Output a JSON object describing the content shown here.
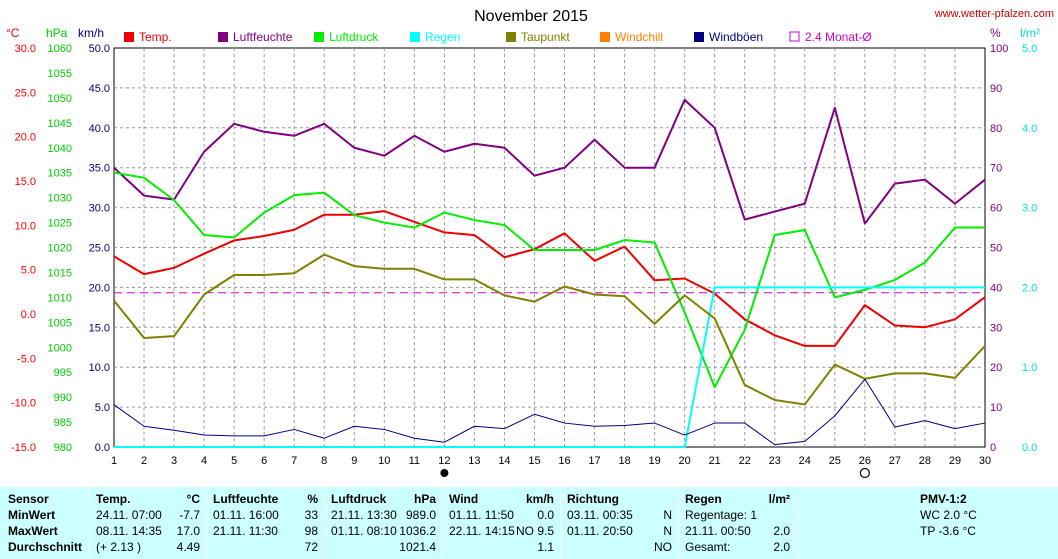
{
  "header": {
    "title": "November 2015",
    "site": "www.wetter-pfalzen.com",
    "unit_temp": "°C",
    "unit_hpa": "hPa",
    "unit_kmh": "km/h",
    "unit_pct": "%",
    "unit_lm2": "l/m²"
  },
  "legend": [
    {
      "label": "Temp.",
      "color": "#ee0000",
      "type": "box"
    },
    {
      "label": "Luftfeuchte",
      "color": "#800080",
      "type": "box"
    },
    {
      "label": "Luftdruck",
      "color": "#00ee00",
      "type": "box"
    },
    {
      "label": "Regen",
      "color": "#00ffff",
      "type": "box"
    },
    {
      "label": "Taupunkt",
      "color": "#808000",
      "type": "box"
    },
    {
      "label": "Windchill",
      "color": "#ff8000",
      "type": "box"
    },
    {
      "label": "Windböen",
      "color": "#000080",
      "type": "box"
    },
    {
      "label": "2.4 Monat-Ø",
      "color": "#cc00cc",
      "type": "outline"
    }
  ],
  "colors": {
    "temp": "#ee0000",
    "humidity": "#800080",
    "pressure": "#00ee00",
    "rain": "#00ffff",
    "dew": "#808000",
    "gust": "#000080",
    "avg": "#cc00cc",
    "grid": "#999999",
    "temp_axis": "#ff0000",
    "pressure_axis": "#00cc00",
    "wind_axis": "#000080",
    "pct_axis": "#800080",
    "rain_axis": "#00dddd",
    "stats_bg": "#ccffff"
  },
  "chart_data": {
    "type": "line",
    "title": "November 2015",
    "x": [
      1,
      2,
      3,
      4,
      5,
      6,
      7,
      8,
      9,
      10,
      11,
      12,
      13,
      14,
      15,
      16,
      17,
      18,
      19,
      20,
      21,
      22,
      23,
      24,
      25,
      26,
      27,
      28,
      29,
      30
    ],
    "xlim": [
      1,
      30
    ],
    "axes": {
      "temp": {
        "label": "°C",
        "range": [
          -15,
          30
        ],
        "ticks": [
          "30.0",
          "25.0",
          "20.0",
          "15.0",
          "10.0",
          "5.0",
          "0.0",
          "-5.0",
          "-10.0",
          "-15.0"
        ]
      },
      "pressure": {
        "label": "hPa",
        "range": [
          980,
          1060
        ],
        "ticks": [
          "1060",
          "1055",
          "1050",
          "1045",
          "1040",
          "1035",
          "1030",
          "1025",
          "1020",
          "1015",
          "1010",
          "1005",
          "1000",
          "995",
          "990",
          "985",
          "980"
        ]
      },
      "wind": {
        "label": "km/h",
        "range": [
          0,
          50
        ],
        "ticks": [
          "50.0",
          "45.0",
          "40.0",
          "35.0",
          "30.0",
          "25.0",
          "20.0",
          "15.0",
          "10.0",
          "5.0",
          "0.0"
        ]
      },
      "humidity": {
        "label": "%",
        "range": [
          0,
          100
        ],
        "ticks": [
          "100",
          "90",
          "80",
          "70",
          "60",
          "50",
          "40",
          "30",
          "20",
          "10",
          "0"
        ]
      },
      "rain": {
        "label": "l/m²",
        "range": [
          0,
          5
        ],
        "ticks": [
          "5.0",
          "4.0",
          "3.0",
          "2.0",
          "1.0",
          "0.0"
        ]
      }
    },
    "x_ticks": [
      "1",
      "2",
      "3",
      "4",
      "5",
      "6",
      "7",
      "8",
      "9",
      "10",
      "11",
      "12",
      "13",
      "14",
      "15",
      "16",
      "17",
      "18",
      "19",
      "20",
      "21",
      "22",
      "23",
      "24",
      "25",
      "26",
      "27",
      "28",
      "29",
      "30"
    ],
    "moon_phases": {
      "new_moon": 12,
      "full_moon": 26
    },
    "reference_line": {
      "name": "2.4 Monat-Ø",
      "value": 2.4
    },
    "series": [
      {
        "name": "Temp.",
        "axis": "temp",
        "values": [
          6.5,
          4.5,
          5.2,
          6.8,
          8.3,
          8.8,
          9.5,
          11.2,
          11.2,
          11.6,
          10.4,
          9.2,
          8.9,
          6.4,
          7.3,
          9.1,
          6.0,
          7.6,
          3.8,
          4.0,
          2.3,
          -0.6,
          -2.4,
          -3.6,
          -3.6,
          1.0,
          -1.3,
          -1.5,
          -0.6,
          1.9
        ]
      },
      {
        "name": "Luftfeuchte",
        "axis": "humidity",
        "values": [
          70,
          63,
          62,
          74,
          81,
          79,
          78,
          81,
          75,
          73,
          78,
          74,
          76,
          75,
          68,
          70,
          77,
          70,
          70,
          87,
          80,
          57,
          59,
          61,
          85,
          56,
          66,
          67,
          61,
          67
        ]
      },
      {
        "name": "Luftdruck",
        "axis": "pressure",
        "values": [
          1035.0,
          1034.0,
          1029.5,
          1022.5,
          1022.0,
          1027.0,
          1030.5,
          1031.0,
          1026.5,
          1025.0,
          1024.0,
          1027.0,
          1025.5,
          1024.5,
          1019.5,
          1019.5,
          1019.5,
          1021.5,
          1021.0,
          1007.0,
          992.0,
          1003.5,
          1022.5,
          1023.5,
          1010.0,
          1011.5,
          1013.5,
          1017.0,
          1024.0,
          1024.0
        ]
      },
      {
        "name": "Regen",
        "axis": "rain",
        "values": [
          0,
          0,
          0,
          0,
          0,
          0,
          0,
          0,
          0,
          0,
          0,
          0,
          0,
          0,
          0,
          0,
          0,
          0,
          0,
          0,
          2.0,
          2.0,
          2.0,
          2.0,
          2.0,
          2.0,
          2.0,
          2.0,
          2.0,
          2.0
        ]
      },
      {
        "name": "Taupunkt",
        "axis": "temp",
        "values": [
          1.5,
          -2.7,
          -2.5,
          2.2,
          4.4,
          4.4,
          4.6,
          6.7,
          5.4,
          5.1,
          5.1,
          3.9,
          3.9,
          2.1,
          1.4,
          3.1,
          2.2,
          2.0,
          -1.1,
          2.1,
          -0.5,
          -8.0,
          -9.7,
          -10.2,
          -5.7,
          -7.3,
          -6.7,
          -6.7,
          -7.2,
          -3.6
        ]
      },
      {
        "name": "Windböen",
        "axis": "wind",
        "values": [
          5.3,
          2.6,
          2.1,
          1.5,
          1.4,
          1.4,
          2.2,
          1.1,
          2.6,
          2.2,
          1.1,
          0.6,
          2.6,
          2.3,
          4.1,
          3.0,
          2.6,
          2.7,
          3.0,
          1.5,
          3.0,
          3.0,
          0.3,
          0.7,
          3.9,
          8.5,
          2.5,
          3.3,
          2.3,
          3.0
        ]
      }
    ]
  },
  "stats": {
    "rows": [
      "Sensor",
      "MinWert",
      "MaxWert",
      "Durchschnitt"
    ],
    "temp": {
      "title": "Temp.",
      "unit": "°C",
      "min_time": "24.11. 07:00",
      "min_value": "-7.7",
      "max_time": "08.11. 14:35",
      "max_value": "17.0",
      "avg_note": "(+ 2.13 )",
      "avg_value": "4.49"
    },
    "humidity": {
      "title": "Luftfeuchte",
      "unit": "%",
      "min_time": "01.11. 16:00",
      "min_value": "33",
      "max_time": "21.11. 11:30",
      "max_value": "98",
      "avg_value": "72"
    },
    "pressure": {
      "title": "Luftdruck",
      "unit": "hPa",
      "min_time": "21.11. 13:30",
      "min_value": "989.0",
      "max_time": "01.11. 08:10",
      "max_value": "1036.2",
      "avg_value": "1021.4"
    },
    "wind": {
      "title": "Wind",
      "unit": "km/h",
      "min_time": "01.11. 11:50",
      "min_value": "0.0",
      "max_time": "22.11. 14:15",
      "max_value": "NO 9.5",
      "avg_value": "1.1"
    },
    "direction": {
      "title": "Richtung",
      "min_time": "03.11. 00:35",
      "min_value": "N",
      "max_time": "01.11. 20:50",
      "max_value": "N",
      "avg_value": "NO"
    },
    "rain": {
      "title": "Regen",
      "unit": "l/m²",
      "line1": "Regentage: 1",
      "line2_time": "21.11. 00:50",
      "line2_value": "2.0",
      "line3_label": "Gesamt:",
      "line3_value": "2.0"
    },
    "pmv": {
      "title": "PMV-1:2",
      "line1": "WC 2.0 °C",
      "line2": "TP -3.6 °C"
    }
  }
}
